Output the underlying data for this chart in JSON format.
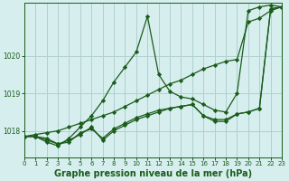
{
  "background_color": "#d6eeee",
  "grid_color": "#b0d0d0",
  "line_color": "#1a5c1a",
  "xlim": [
    0,
    23
  ],
  "ylim": [
    1017.3,
    1021.4
  ],
  "yticks": [
    1018,
    1019,
    1020
  ],
  "xticks": [
    0,
    1,
    2,
    3,
    4,
    5,
    6,
    7,
    8,
    9,
    10,
    11,
    12,
    13,
    14,
    15,
    16,
    17,
    18,
    19,
    20,
    21,
    22,
    23
  ],
  "xlabel": "Graphe pression niveau de la mer (hPa)",
  "xlabel_fontsize": 7.0,
  "lines": [
    {
      "x": [
        0,
        1,
        2,
        3,
        4,
        5,
        6,
        7,
        8,
        9,
        10,
        11,
        12,
        13,
        14,
        15,
        16,
        17,
        18,
        19,
        20,
        21,
        22,
        23
      ],
      "y": [
        1017.85,
        1017.85,
        1017.7,
        1017.6,
        1017.8,
        1018.1,
        1018.4,
        1018.8,
        1019.3,
        1019.7,
        1020.1,
        1021.05,
        1019.5,
        1019.05,
        1018.9,
        1018.85,
        1018.7,
        1018.55,
        1018.5,
        1019.0,
        1021.2,
        1021.3,
        1021.35,
        1021.3
      ]
    },
    {
      "x": [
        0,
        1,
        2,
        3,
        4,
        5,
        6,
        7,
        8,
        9,
        10,
        11,
        12,
        13,
        14,
        15,
        16,
        17,
        18,
        19,
        20,
        21,
        22,
        23
      ],
      "y": [
        1017.85,
        1017.9,
        1017.95,
        1018.0,
        1018.1,
        1018.2,
        1018.3,
        1018.4,
        1018.5,
        1018.65,
        1018.8,
        1018.95,
        1019.1,
        1019.25,
        1019.35,
        1019.5,
        1019.65,
        1019.75,
        1019.85,
        1019.9,
        1020.9,
        1021.0,
        1021.2,
        1021.3
      ]
    },
    {
      "x": [
        0,
        1,
        2,
        3,
        4,
        5,
        6,
        7,
        8,
        9,
        10,
        11,
        12,
        13,
        14,
        15,
        16,
        17,
        18,
        19,
        20,
        21,
        22,
        23
      ],
      "y": [
        1017.85,
        1017.85,
        1017.75,
        1017.65,
        1017.75,
        1017.9,
        1018.1,
        1017.75,
        1018.0,
        1018.15,
        1018.3,
        1018.4,
        1018.5,
        1018.6,
        1018.65,
        1018.7,
        1018.4,
        1018.25,
        1018.25,
        1018.45,
        1018.5,
        1018.6,
        1021.25,
        1021.3
      ]
    },
    {
      "x": [
        0,
        1,
        2,
        3,
        4,
        5,
        6,
        7,
        8,
        9,
        10,
        11,
        12,
        13,
        14,
        15,
        16,
        17,
        18,
        19,
        20,
        21,
        22,
        23
      ],
      "y": [
        1017.85,
        1017.85,
        1017.8,
        1017.65,
        1017.7,
        1017.95,
        1018.05,
        1017.8,
        1018.05,
        1018.2,
        1018.35,
        1018.45,
        1018.55,
        1018.6,
        1018.65,
        1018.7,
        1018.4,
        1018.3,
        1018.3,
        1018.45,
        1018.5,
        1018.6,
        1021.25,
        1021.3
      ]
    }
  ],
  "marker": "D",
  "markersize": 2.2,
  "linewidth": 0.9
}
